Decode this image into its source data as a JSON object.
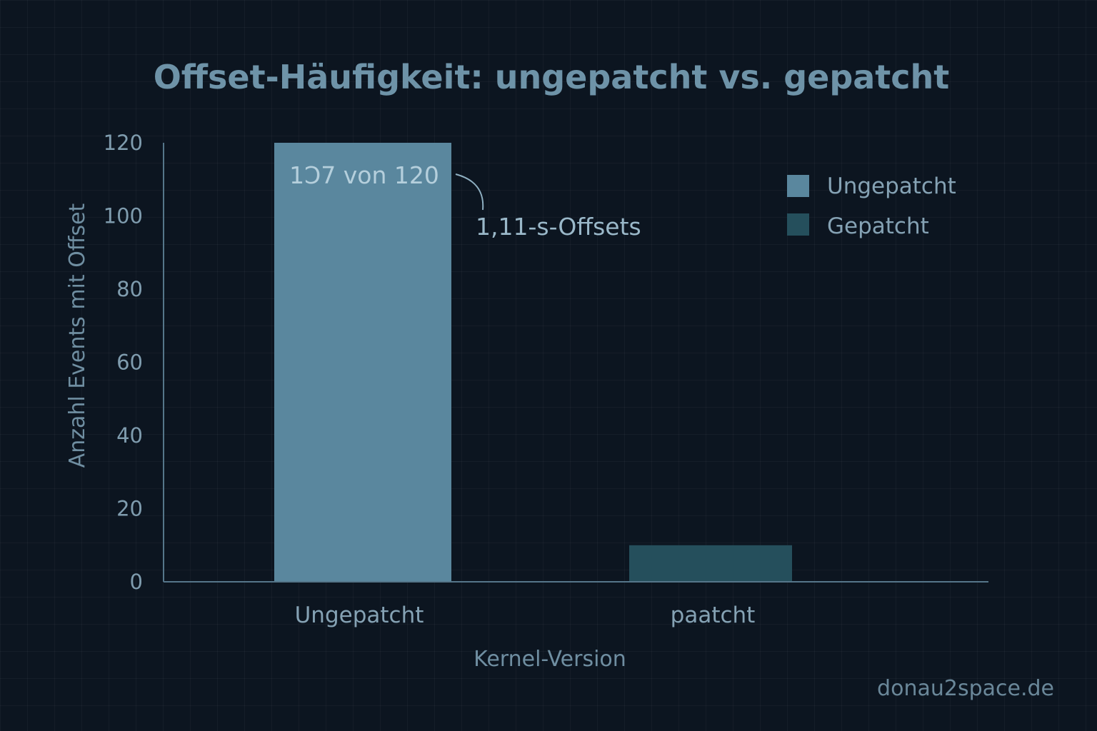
{
  "chart_data": {
    "type": "bar",
    "title": "Offset-Häufigkeit: ungepatcht vs. gepatcht",
    "xlabel": "Kernel-Version",
    "ylabel": "Anzahl Events mit Offset",
    "categories": [
      "Ungepatcht",
      "paatcht"
    ],
    "values": [
      120,
      10
    ],
    "ylim": [
      0,
      120
    ],
    "yticks": [
      0,
      20,
      40,
      60,
      80,
      100,
      120
    ],
    "bar_colors": [
      "#5a879e",
      "#254f5c"
    ],
    "legend": {
      "position": "top-right",
      "entries": [
        {
          "label": "Ungepatcht",
          "color": "#5a879e"
        },
        {
          "label": "Gepatcht",
          "color": "#254f5c"
        }
      ]
    },
    "annotations": {
      "in_bar": "1Ͻ7 von 120",
      "callout": "1,11-s-Offsets"
    },
    "grid": true
  },
  "watermark": "donau2space.de",
  "colors": {
    "background": "#0c1520",
    "axis": "#55768a"
  }
}
